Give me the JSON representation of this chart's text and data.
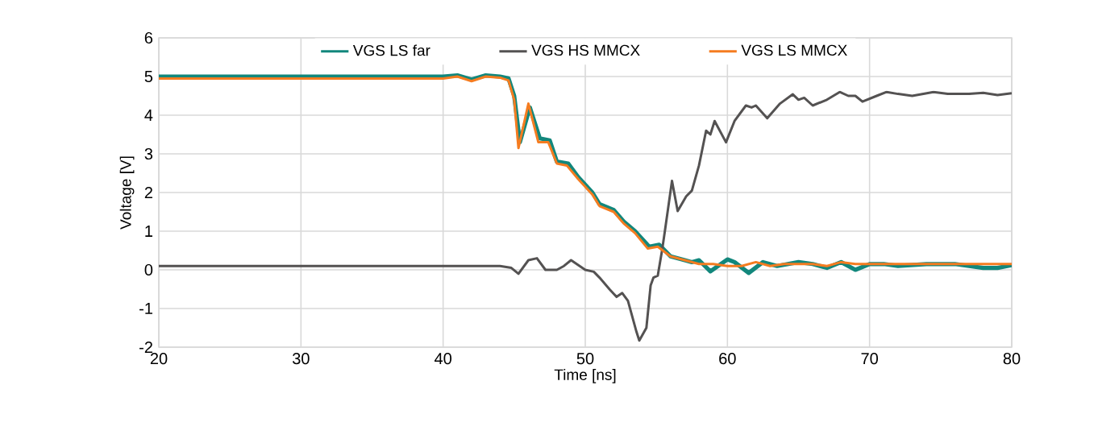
{
  "chart_data": {
    "type": "line",
    "xlabel": "Time [ns]",
    "ylabel": "Voltage [V]",
    "xlim": [
      20,
      80
    ],
    "xticks": [
      20,
      30,
      40,
      50,
      60,
      70,
      80
    ],
    "ylim": [
      -2,
      6
    ],
    "yticks": [
      -2,
      -1,
      0,
      1,
      2,
      3,
      4,
      5,
      6
    ],
    "grid": true,
    "legend": "top",
    "marker": "none",
    "line_style": "solid",
    "series": [
      {
        "name": "VGS LS far",
        "color": "#12877c",
        "x": [
          20,
          30,
          40,
          41,
          42,
          43,
          44,
          44.6,
          45,
          45.4,
          46.1,
          46.8,
          47.5,
          48,
          48.8,
          49.5,
          50.5,
          51,
          52,
          52.7,
          53.5,
          54.5,
          55.2,
          56,
          57,
          57.5,
          58,
          58.8,
          60,
          60.5,
          61.5,
          62.5,
          63.5,
          65,
          66,
          67,
          68,
          69,
          70,
          71,
          72,
          74,
          76,
          78,
          79,
          80
        ],
        "values": [
          5.0,
          5.0,
          5.0,
          5.03,
          4.92,
          5.03,
          5.0,
          4.95,
          4.5,
          3.3,
          4.2,
          3.4,
          3.35,
          2.8,
          2.75,
          2.4,
          2.0,
          1.7,
          1.55,
          1.25,
          1.0,
          0.6,
          0.65,
          0.35,
          0.25,
          0.2,
          0.25,
          -0.04,
          0.27,
          0.2,
          -0.08,
          0.2,
          0.1,
          0.2,
          0.15,
          0.05,
          0.2,
          0.0,
          0.15,
          0.15,
          0.1,
          0.15,
          0.15,
          0.05,
          0.05,
          0.12
        ]
      },
      {
        "name": "VGS HS MMCX",
        "color": "#545252",
        "x": [
          20,
          30,
          40,
          42,
          44,
          44.8,
          45.3,
          46,
          46.6,
          47.2,
          48,
          48.5,
          49,
          50,
          50.6,
          51,
          51.7,
          52.2,
          52.6,
          53,
          53.6,
          53.8,
          54.3,
          54.6,
          54.8,
          55.1,
          55.4,
          55.6,
          56.1,
          56.5,
          57.1,
          57.5,
          58,
          58.5,
          58.8,
          59.1,
          59.9,
          60.5,
          61.3,
          61.7,
          62,
          62.8,
          63.7,
          64.6,
          65,
          65.4,
          66,
          67,
          67.9,
          68.5,
          69,
          69.5,
          70.5,
          71.2,
          72,
          73,
          74.5,
          75.5,
          77,
          78,
          79,
          80
        ],
        "values": [
          0.1,
          0.1,
          0.1,
          0.1,
          0.1,
          0.05,
          -0.1,
          0.25,
          0.3,
          0.0,
          0.0,
          0.1,
          0.25,
          0.0,
          -0.05,
          -0.2,
          -0.5,
          -0.7,
          -0.6,
          -0.8,
          -1.6,
          -1.83,
          -1.5,
          -0.4,
          -0.2,
          -0.15,
          0.5,
          1.0,
          2.3,
          1.52,
          1.9,
          2.05,
          2.7,
          3.6,
          3.5,
          3.85,
          3.3,
          3.85,
          4.25,
          4.2,
          4.25,
          3.92,
          4.3,
          4.54,
          4.4,
          4.45,
          4.25,
          4.4,
          4.6,
          4.5,
          4.5,
          4.35,
          4.5,
          4.6,
          4.55,
          4.5,
          4.6,
          4.55,
          4.55,
          4.58,
          4.52,
          4.57
        ]
      },
      {
        "name": "VGS LS MMCX",
        "color": "#f57c20",
        "x": [
          20,
          30,
          40,
          41,
          42,
          43,
          44,
          44.6,
          45,
          45.3,
          46,
          46.7,
          47.4,
          48,
          48.7,
          49.5,
          50.5,
          51,
          52,
          52.7,
          53.5,
          54.4,
          55.1,
          56,
          57,
          58,
          59,
          60,
          61,
          62,
          63,
          64,
          65,
          66,
          67,
          68,
          69,
          70,
          72,
          75,
          80
        ],
        "values": [
          4.95,
          4.95,
          4.95,
          5.0,
          4.88,
          5.0,
          4.97,
          4.9,
          4.4,
          3.15,
          4.3,
          3.3,
          3.3,
          2.75,
          2.7,
          2.35,
          1.95,
          1.65,
          1.5,
          1.2,
          0.95,
          0.55,
          0.6,
          0.35,
          0.25,
          0.15,
          0.15,
          0.1,
          0.1,
          0.2,
          0.1,
          0.15,
          0.15,
          0.15,
          0.1,
          0.2,
          0.15,
          0.15,
          0.15,
          0.15,
          0.15
        ]
      }
    ]
  }
}
